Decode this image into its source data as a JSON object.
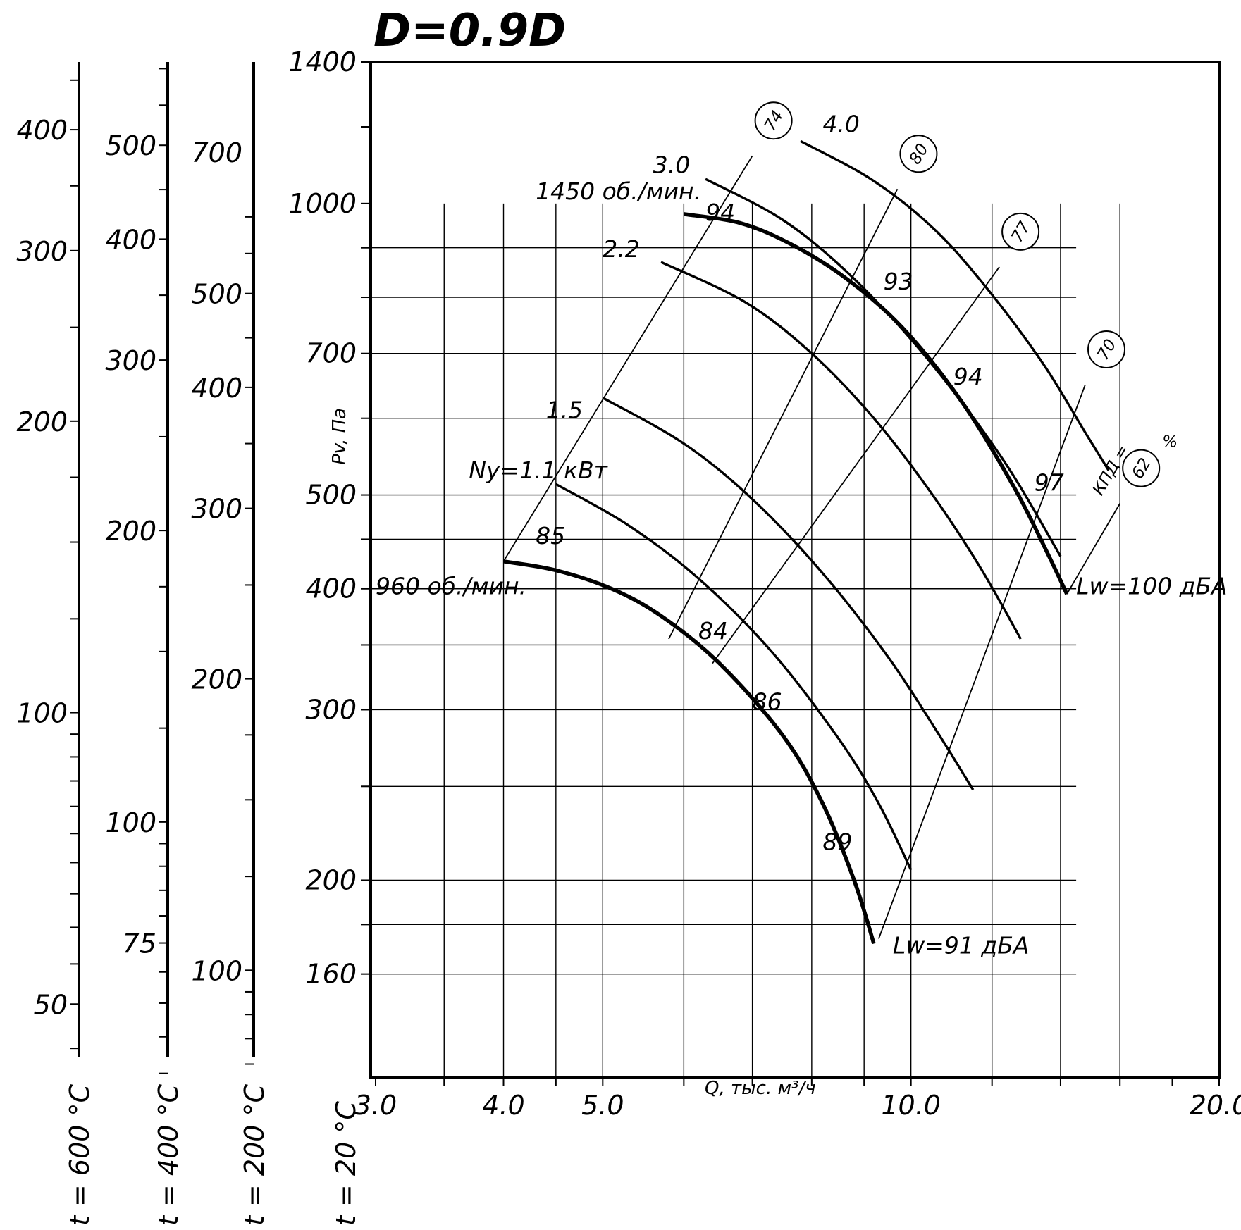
{
  "chart_data": {
    "type": "line",
    "title": "D=0.9D",
    "xlabel": "Q, тыс. м³/ч",
    "ylabel": "Pv, Па",
    "x_scale": "log",
    "y_scale": "log",
    "xlim": [
      3.0,
      20.0
    ],
    "ylim": [
      125,
      1400
    ],
    "grid": true,
    "x_tick_labels": [
      {
        "value": 3.0,
        "label": "3.0"
      },
      {
        "value": 4.0,
        "label": "4.0"
      },
      {
        "value": 5.0,
        "label": "5.0"
      },
      {
        "value": 10.0,
        "label": "10.0"
      },
      {
        "value": 20.0,
        "label": "20.0"
      }
    ],
    "y_tick_labels": [
      {
        "value": 1400,
        "label": "1400"
      },
      {
        "value": 1000,
        "label": "1000"
      },
      {
        "value": 700,
        "label": "700"
      },
      {
        "value": 500,
        "label": "500"
      },
      {
        "value": 400,
        "label": "400"
      },
      {
        "value": 300,
        "label": "300"
      },
      {
        "value": 200,
        "label": "200"
      },
      {
        "value": 160,
        "label": "160"
      }
    ],
    "temperature_axes": [
      {
        "label": "t = 600 °C",
        "ticks": [
          {
            "value": 400,
            "label": "400"
          },
          {
            "value": 300,
            "label": "300"
          },
          {
            "value": 200,
            "label": "200"
          },
          {
            "value": 100,
            "label": "100"
          },
          {
            "value": 50,
            "label": "50"
          }
        ]
      },
      {
        "label": "t = 400 °C",
        "ticks": [
          {
            "value": 500,
            "label": "500"
          },
          {
            "value": 400,
            "label": "400"
          },
          {
            "value": 300,
            "label": "300"
          },
          {
            "value": 200,
            "label": "200"
          },
          {
            "value": 100,
            "label": "100"
          },
          {
            "value": 75,
            "label": "75"
          }
        ]
      },
      {
        "label": "t = 200 °C",
        "ticks": [
          {
            "value": 700,
            "label": "700"
          },
          {
            "value": 500,
            "label": "500"
          },
          {
            "value": 400,
            "label": "400"
          },
          {
            "value": 300,
            "label": "300"
          },
          {
            "value": 200,
            "label": "200"
          },
          {
            "value": 100,
            "label": "100"
          }
        ]
      },
      {
        "label": "t = 20 °C",
        "ticks": []
      }
    ],
    "series": [
      {
        "name": "1450 об./мин.",
        "style": "bold",
        "points": [
          [
            6.0,
            975
          ],
          [
            6.8,
            955
          ],
          [
            7.6,
            910
          ],
          [
            8.6,
            840
          ],
          [
            9.8,
            745
          ],
          [
            11.2,
            625
          ],
          [
            12.6,
            510
          ],
          [
            13.6,
            435
          ],
          [
            14.2,
            395
          ]
        ]
      },
      {
        "name": "960 об./мин.",
        "style": "bold",
        "points": [
          [
            4.0,
            427
          ],
          [
            4.5,
            418
          ],
          [
            5.1,
            400
          ],
          [
            5.7,
            375
          ],
          [
            6.5,
            335
          ],
          [
            7.5,
            282
          ],
          [
            8.2,
            240
          ],
          [
            8.8,
            200
          ],
          [
            9.2,
            172
          ]
        ]
      },
      {
        "name": "3.0",
        "style": "normal",
        "points": [
          [
            6.3,
            1060
          ],
          [
            7.4,
            970
          ],
          [
            8.4,
            875
          ],
          [
            9.6,
            760
          ],
          [
            11.0,
            640
          ],
          [
            12.5,
            530
          ],
          [
            14.0,
            432
          ]
        ]
      },
      {
        "name": "2.2",
        "style": "normal",
        "points": [
          [
            5.7,
            870
          ],
          [
            6.9,
            790
          ],
          [
            8.0,
            700
          ],
          [
            9.2,
            600
          ],
          [
            10.5,
            500
          ],
          [
            11.7,
            420
          ],
          [
            12.8,
            355
          ]
        ]
      },
      {
        "name": "1.5",
        "style": "normal",
        "points": [
          [
            5.0,
            630
          ],
          [
            6.0,
            565
          ],
          [
            7.0,
            495
          ],
          [
            8.2,
            415
          ],
          [
            9.5,
            340
          ],
          [
            10.6,
            285
          ],
          [
            11.5,
            248
          ]
        ]
      },
      {
        "name": "Ny=1.1 кВт",
        "style": "normal",
        "points": [
          [
            4.5,
            513
          ],
          [
            5.3,
            465
          ],
          [
            6.2,
            410
          ],
          [
            7.3,
            345
          ],
          [
            8.5,
            280
          ],
          [
            9.3,
            240
          ],
          [
            10.0,
            205
          ]
        ]
      },
      {
        "name": "4.0",
        "style": "normal",
        "points": [
          [
            7.8,
            1160
          ],
          [
            9.2,
            1055
          ],
          [
            10.6,
            935
          ],
          [
            12.0,
            805
          ],
          [
            13.5,
            680
          ],
          [
            14.8,
            580
          ],
          [
            15.6,
            530
          ]
        ]
      }
    ],
    "iso_lines": [
      {
        "label": "74",
        "points": [
          [
            4.0,
            427
          ],
          [
            7.0,
            1120
          ]
        ]
      },
      {
        "label": "80",
        "points": [
          [
            5.8,
            355
          ],
          [
            9.7,
            1035
          ]
        ]
      },
      {
        "label": "77",
        "points": [
          [
            6.4,
            335
          ],
          [
            12.2,
            860
          ]
        ]
      },
      {
        "label": "70",
        "points": [
          [
            9.3,
            174
          ],
          [
            14.8,
            650
          ]
        ]
      },
      {
        "label": "62",
        "points": [
          [
            14.2,
            395
          ],
          [
            16.0,
            490
          ]
        ]
      }
    ],
    "iso_label_prefix": "КПД =",
    "iso_label_unit": "%",
    "data_labels": [
      {
        "text": "3.0"
      },
      {
        "text": "1450 об./мин."
      },
      {
        "text": "94"
      },
      {
        "text": "2.2"
      },
      {
        "text": "1.5"
      },
      {
        "text": "Ny=1.1 кВт"
      },
      {
        "text": "85"
      },
      {
        "text": "960 об./мин."
      },
      {
        "text": "84"
      },
      {
        "text": "86"
      },
      {
        "text": "89"
      },
      {
        "text": "93"
      },
      {
        "text": "94"
      },
      {
        "text": "97"
      },
      {
        "text": "4.0"
      },
      {
        "text": "Lw=100 дБА"
      },
      {
        "text": "Lw=91 дБА"
      }
    ]
  }
}
